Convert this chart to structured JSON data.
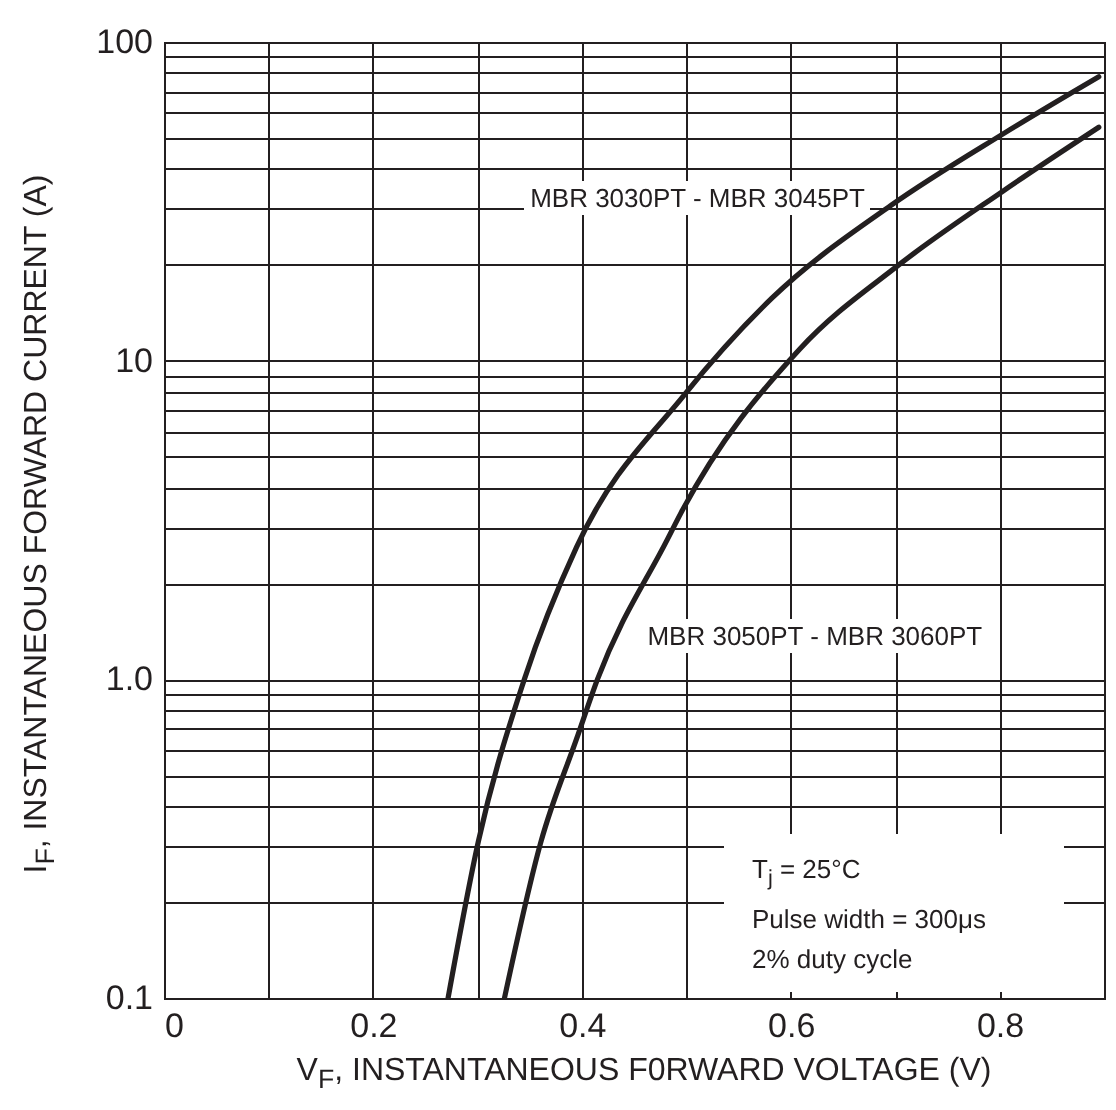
{
  "chart_data": {
    "type": "line",
    "xlabel": "V$_{F}$, INSTANTANEOUS F0RWARD VOLTAGE (V)",
    "ylabel": "I$_{F}$, INSTANTANEOUS FORWARD CURRENT (A)",
    "xlim": [
      0,
      0.9
    ],
    "xticks": [
      0,
      {
        "value": 0.1,
        "label": null
      },
      0.2,
      {
        "value": 0.3,
        "label": null
      },
      0.4,
      {
        "value": 0.5,
        "label": null
      },
      0.6,
      {
        "value": 0.7,
        "label": null
      },
      0.8
    ],
    "ylim": [
      0.1,
      100
    ],
    "yticks": [
      0.1,
      {
        "value": 0.2,
        "label": null
      },
      {
        "value": 0.3,
        "label": null
      },
      {
        "value": 0.4,
        "label": null
      },
      {
        "value": 0.5,
        "label": null
      },
      {
        "value": 0.6,
        "label": null
      },
      {
        "value": 0.7,
        "label": null
      },
      {
        "value": 0.8,
        "label": null
      },
      {
        "value": 0.9,
        "label": null
      },
      {
        "value": 1,
        "label": "1.0"
      },
      {
        "value": 2,
        "label": null
      },
      {
        "value": 3,
        "label": null
      },
      {
        "value": 4,
        "label": null
      },
      {
        "value": 5,
        "label": null
      },
      {
        "value": 6,
        "label": null
      },
      {
        "value": 7,
        "label": null
      },
      {
        "value": 8,
        "label": null
      },
      {
        "value": 9,
        "label": null
      },
      10,
      {
        "value": 20,
        "label": null
      },
      {
        "value": 30,
        "label": null
      },
      {
        "value": 40,
        "label": null
      },
      {
        "value": 50,
        "label": null
      },
      {
        "value": 60,
        "label": null
      },
      {
        "value": 70,
        "label": null
      },
      {
        "value": 80,
        "label": null
      },
      {
        "value": 90,
        "label": null
      },
      100
    ],
    "log": "y",
    "grid": true,
    "legend": false,
    "marker": "none",
    "line_style": "solid",
    "series": [
      {
        "name": "MBR 3030PT - MBR 3045PT",
        "color": "#231f20",
        "x": [
          0.272,
          0.301,
          0.345,
          0.395,
          0.498,
          0.582,
          0.696,
          0.803,
          0.895
        ],
        "values": [
          0.1,
          0.31,
          1.0,
          2.6,
          7.8,
          15.7,
          30.7,
          51.4,
          77.8
        ]
      },
      {
        "name": "MBR 3050PT - MBR 3060PT",
        "color": "#231f20",
        "x": [
          0.326,
          0.361,
          0.395,
          0.415,
          0.482,
          0.495,
          0.609,
          0.702,
          0.803,
          0.895
        ],
        "values": [
          0.1,
          0.31,
          0.65,
          1.0,
          2.75,
          3.33,
          10.9,
          19.8,
          34,
          54
        ]
      }
    ],
    "annotations": [
      "T$_{j}$ = 25°C",
      "Pulse width = 300μs",
      "2% duty cycle"
    ]
  }
}
